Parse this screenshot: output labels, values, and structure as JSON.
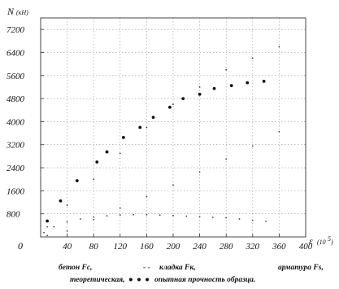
{
  "chart_data": {
    "type": "scatter",
    "ylabel": "N",
    "ylabel_unit": "(кН)",
    "xlabel": "ε",
    "xlabel_unit": "(10",
    "xlabel_sup": "5",
    "xlabel_close": ")",
    "origin_label": "0",
    "x_ticks": [
      "40",
      "80",
      "120",
      "160",
      "200",
      "240",
      "280",
      "320",
      "360",
      "400"
    ],
    "y_ticks": [
      "800",
      "1600",
      "2400",
      "3200",
      "4000",
      "4800",
      "5600",
      "6400",
      "7200"
    ],
    "xlim": [
      0,
      400
    ],
    "ylim": [
      0,
      7600
    ],
    "grid": "dotted",
    "series": [
      {
        "name": "опытная прочность образца",
        "style": "large-dots",
        "x": [
          10,
          30,
          55,
          85,
          100,
          125,
          150,
          170,
          195,
          215,
          240,
          262,
          288,
          312,
          337
        ],
        "y": [
          550,
          1250,
          1950,
          2600,
          2950,
          3450,
          3800,
          4150,
          4500,
          4800,
          4950,
          5150,
          5250,
          5350,
          5400
        ]
      },
      {
        "name": "бетон Fc",
        "style": "small-dots",
        "x": [
          5,
          20,
          40,
          60,
          80,
          100,
          120,
          140,
          160,
          180,
          200,
          220,
          240,
          260,
          280,
          300,
          320,
          340
        ],
        "y": [
          150,
          350,
          520,
          620,
          690,
          730,
          760,
          770,
          770,
          760,
          740,
          720,
          700,
          680,
          660,
          620,
          580,
          540
        ]
      },
      {
        "name": "кладка Fк",
        "style": "small-dots",
        "x": [
          10,
          40,
          80,
          120,
          160,
          200,
          240,
          280,
          320,
          360
        ],
        "y": [
          350,
          1100,
          2000,
          2900,
          3800,
          4600,
          5200,
          5800,
          6200,
          6600
        ]
      },
      {
        "name": "арматура Fs",
        "style": "small-dots",
        "x": [
          10,
          40,
          80,
          120,
          160,
          200,
          240,
          280,
          320,
          360
        ],
        "y": [
          50,
          200,
          600,
          1000,
          1400,
          1800,
          2250,
          2700,
          3150,
          3650
        ]
      }
    ]
  },
  "legend": {
    "item_concrete": "бетон Fc,",
    "item_masonry_marker": "- -",
    "item_masonry": "кладка Fк,",
    "item_rebar": "арматура Fs,",
    "item_theoretical": "теоретическая,",
    "item_experimental_marker": "● ● ●",
    "item_experimental": "опытная прочность образца."
  }
}
